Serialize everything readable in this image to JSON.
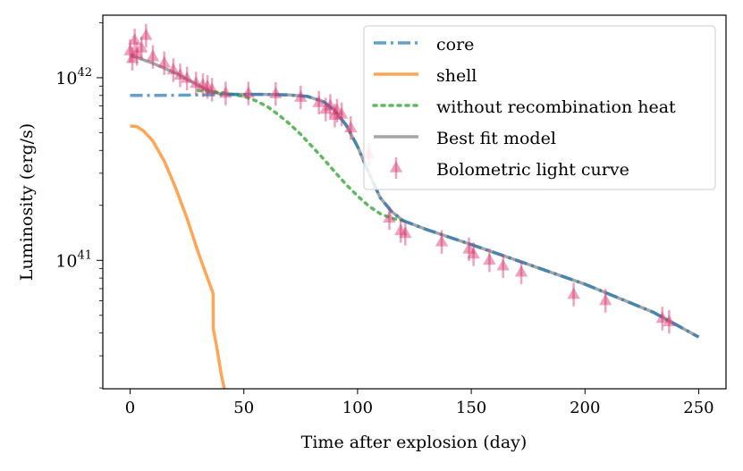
{
  "chart_data": {
    "type": "line",
    "title": "",
    "xlabel": "Time after explosion (day)",
    "ylabel": "Luminosity (erg/s)",
    "xlim": [
      -12,
      262
    ],
    "ylim": [
      1.98e+40,
      2.2e+42
    ],
    "yscale": "log",
    "xticks": [
      0,
      50,
      100,
      150,
      200,
      250
    ],
    "xtick_labels": [
      "0",
      "50",
      "100",
      "150",
      "200",
      "250"
    ],
    "yticks": [
      {
        "base": "10",
        "exp": "42",
        "value": 1e+42
      },
      {
        "base": "10",
        "exp": "41",
        "value": 1e+41
      }
    ],
    "legend_position": "top-right",
    "series": [
      {
        "name": "core",
        "style": "dash-dot",
        "color": "#1f77b4",
        "x": [
          0,
          10,
          20,
          30,
          40,
          50,
          60,
          70,
          78,
          85,
          90,
          95,
          100,
          105,
          110,
          115,
          120,
          130,
          150,
          170,
          200,
          230,
          250
        ],
        "y": [
          8e+41,
          8e+41,
          8.02e+41,
          8.05e+41,
          8.08e+41,
          8.1e+41,
          8.1e+41,
          8.05e+41,
          7.9e+41,
          7.4e+41,
          6.6e+41,
          5.5e+41,
          4.2e+41,
          3e+41,
          2.2e+41,
          1.85e+41,
          1.65e+41,
          1.48e+41,
          1.22e+41,
          1e+41,
          7.4e+40,
          5.2e+40,
          3.8e+40
        ]
      },
      {
        "name": "shell",
        "style": "solid",
        "color": "#ff7f0e",
        "x": [
          0,
          3,
          6,
          10,
          15,
          20,
          25,
          30,
          34,
          36.5,
          36.6,
          38,
          40,
          41.5
        ],
        "y": [
          5.45e+41,
          5.4e+41,
          5.1e+41,
          4.5e+41,
          3.5e+41,
          2.5e+41,
          1.7e+41,
          1.1e+41,
          8e+40,
          6.6e+40,
          4.2e+40,
          3.4e+40,
          2.4e+40,
          1.95e+40
        ]
      },
      {
        "name": "without recombination heat",
        "style": "dotted",
        "color": "#2ca02c",
        "x": [
          30,
          40,
          50,
          55,
          60,
          65,
          70,
          75,
          80,
          85,
          90,
          95,
          100,
          105,
          110,
          115,
          120
        ],
        "y": [
          8.5e+41,
          8.3e+41,
          7.9e+41,
          7.5e+41,
          7e+41,
          6.3e+41,
          5.6e+41,
          4.9e+41,
          4.2e+41,
          3.6e+41,
          3.05e+41,
          2.6e+41,
          2.25e+41,
          1.98e+41,
          1.8e+41,
          1.7e+41,
          1.65e+41
        ]
      },
      {
        "name": "Best fit model",
        "style": "solid",
        "color": "#7f7f7f",
        "x": [
          0,
          10,
          20,
          30,
          35,
          40,
          50,
          60,
          70,
          78,
          85,
          90,
          95,
          100,
          105,
          110,
          115,
          120,
          130,
          150,
          170,
          200,
          230,
          250
        ],
        "y": [
          1.33e+42,
          1.2e+42,
          1.06e+42,
          9.1e+41,
          8.4e+41,
          8.15e+41,
          8.1e+41,
          8.1e+41,
          8.05e+41,
          7.9e+41,
          7.4e+41,
          6.6e+41,
          5.5e+41,
          4.2e+41,
          3e+41,
          2.2e+41,
          1.85e+41,
          1.65e+41,
          1.48e+41,
          1.22e+41,
          1e+41,
          7.4e+40,
          5.2e+40,
          3.8e+40
        ]
      }
    ],
    "observations": {
      "name": "Bolometric light curve",
      "marker": "triangle",
      "color": "#d6336c",
      "x": [
        0,
        1,
        2,
        3,
        5,
        7,
        10,
        15,
        19,
        22,
        25,
        29,
        32,
        34,
        36,
        42,
        52,
        64,
        75,
        83,
        86,
        88,
        90,
        91,
        93,
        97,
        105,
        114,
        119,
        121,
        137,
        149,
        151,
        158,
        164,
        172,
        195,
        209,
        234,
        237
      ],
      "y": [
        1.4e+42,
        1.27e+42,
        1.6e+42,
        1.35e+42,
        1.45e+42,
        1.7e+42,
        1.3e+42,
        1.2e+42,
        1.1e+42,
        1.03e+42,
        9.9e+41,
        9.3e+41,
        9.1e+41,
        8.9e+41,
        8.6e+41,
        8.2e+41,
        8.2e+41,
        8.15e+41,
        7.8e+41,
        7.3e+41,
        6.7e+41,
        7e+41,
        6.2e+41,
        6.6e+41,
        6.3e+41,
        5.3e+41,
        3.8e+41,
        1.7e+41,
        1.45e+41,
        1.4e+41,
        1.26e+41,
        1.15e+41,
        1.08e+41,
        1e+41,
        9.3e+40,
        8.6e+40,
        6.5e+40,
        6e+40,
        4.8e+40,
        4.6e+40
      ],
      "error_factor": 1.16
    }
  }
}
